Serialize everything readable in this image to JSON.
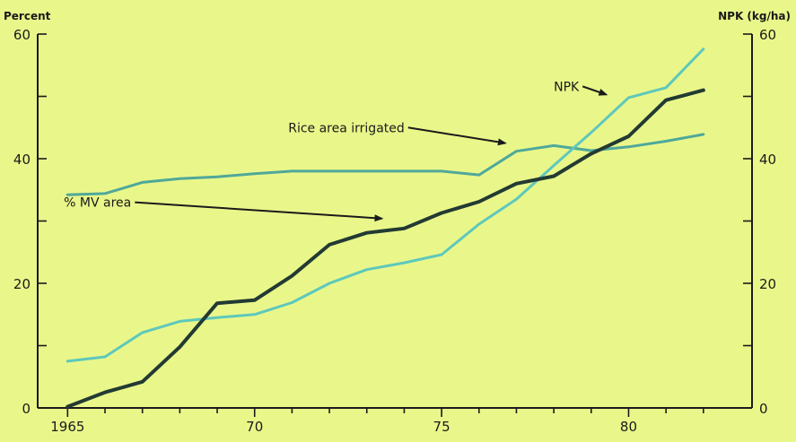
{
  "chart_data": {
    "type": "line",
    "left_axis_label": "Percent",
    "right_axis_label": "NPK (kg/ha)",
    "x": [
      1965,
      1966,
      1967,
      1968,
      1969,
      1970,
      1971,
      1972,
      1973,
      1974,
      1975,
      1976,
      1977,
      1978,
      1979,
      1980,
      1981,
      1982
    ],
    "x_ticks": [
      1965,
      1970,
      1975,
      1980
    ],
    "x_tick_labels": [
      "1965",
      "70",
      "75",
      "80"
    ],
    "xlim": [
      1964.2,
      1983.3
    ],
    "ylim": [
      0,
      60
    ],
    "y_ticks": [
      0,
      20,
      40,
      60
    ],
    "y_tick_labels": [
      "0",
      "20",
      "40",
      "60"
    ],
    "y_minor_ticks": [
      10,
      30,
      50
    ],
    "right_ylim": [
      0,
      60
    ],
    "right_y_tick_labels": [
      "0",
      "20",
      "40",
      "60"
    ],
    "grid": false,
    "series": [
      {
        "name": "Rice area irrigated",
        "color": "#4fa89a",
        "values": [
          34.2,
          34.4,
          36.2,
          36.8,
          37.1,
          37.6,
          38.0,
          38.0,
          38.0,
          38.0,
          38.0,
          37.4,
          41.2,
          42.1,
          41.3,
          41.9,
          42.8,
          43.9
        ]
      },
      {
        "name": "NPK",
        "color": "#5ec8bc",
        "values": [
          7.5,
          8.2,
          12.1,
          13.9,
          14.5,
          15.0,
          16.9,
          20.0,
          22.2,
          23.3,
          24.6,
          29.5,
          33.5,
          38.9,
          44.2,
          49.8,
          51.4,
          57.6
        ]
      },
      {
        "name": "% MV area",
        "color": "#233a33",
        "values": [
          0.2,
          2.5,
          4.2,
          9.8,
          16.8,
          17.3,
          21.2,
          26.2,
          28.1,
          28.8,
          31.3,
          33.1,
          36.0,
          37.2,
          40.8,
          43.6,
          49.4,
          51.0
        ]
      }
    ],
    "annotations": [
      {
        "text": "NPK",
        "x": 1978.0,
        "y": 51.6,
        "arrow_to": [
          1979.4,
          50.3
        ]
      },
      {
        "text": "Rice area irrigated",
        "x": 1970.9,
        "y": 45.0,
        "arrow_to": [
          1976.7,
          42.5
        ]
      },
      {
        "text": "% MV area",
        "x": 1964.9,
        "y": 33.0,
        "arrow_to": [
          1973.4,
          30.4
        ]
      }
    ],
    "colors": {
      "plot_background": "#e9f78a",
      "axis": "#1a1a1a",
      "arrow": "#1a1a1a"
    }
  }
}
